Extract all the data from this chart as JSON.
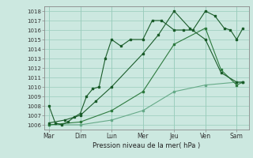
{
  "title": "",
  "xlabel": "Pression niveau de la mer( hPa )",
  "bg_color": "#cce8e0",
  "grid_color": "#99ccbb",
  "line_color_1": "#1a5c2a",
  "line_color_2": "#1a5c2a",
  "line_color_3": "#2d7a3e",
  "line_color_4": "#66aa88",
  "x_labels": [
    "Mar",
    "Dim",
    "Lun",
    "Mer",
    "Jeu",
    "Ven",
    "Sam"
  ],
  "x_positions": [
    0,
    1,
    2,
    3,
    4,
    5,
    6
  ],
  "ylim": [
    1005.5,
    1018.5
  ],
  "yticks": [
    1006,
    1007,
    1008,
    1009,
    1010,
    1011,
    1012,
    1013,
    1014,
    1015,
    1016,
    1017,
    1018
  ],
  "series1_x": [
    0,
    0.2,
    0.4,
    0.6,
    0.8,
    1.0,
    1.2,
    1.4,
    1.6,
    1.8,
    2.0,
    2.3,
    2.6,
    3.0,
    3.3,
    3.6,
    4.0,
    4.3,
    4.6,
    5.0,
    5.3,
    5.6,
    5.8,
    6.0,
    6.2
  ],
  "series1_y": [
    1008.0,
    1006.2,
    1006.0,
    1006.3,
    1006.8,
    1007.2,
    1009.0,
    1009.8,
    1010.0,
    1013.0,
    1015.0,
    1014.3,
    1015.0,
    1015.0,
    1017.0,
    1017.0,
    1016.0,
    1016.0,
    1016.0,
    1018.0,
    1017.5,
    1016.2,
    1016.0,
    1015.0,
    1016.2
  ],
  "series2_x": [
    0,
    0.5,
    1.0,
    1.5,
    2.0,
    3.0,
    3.5,
    4.0,
    4.5,
    5.0,
    5.5,
    6.0,
    6.2
  ],
  "series2_y": [
    1006.2,
    1006.5,
    1007.0,
    1008.5,
    1010.0,
    1013.5,
    1015.5,
    1018.0,
    1016.2,
    1015.0,
    1011.5,
    1010.5,
    1010.5
  ],
  "series3_x": [
    0,
    1.0,
    2.0,
    3.0,
    4.0,
    5.0,
    5.5,
    6.0,
    6.2
  ],
  "series3_y": [
    1006.0,
    1006.3,
    1007.5,
    1009.5,
    1014.5,
    1016.2,
    1011.8,
    1010.2,
    1010.5
  ],
  "series4_x": [
    0,
    1.0,
    2.0,
    3.0,
    4.0,
    5.0,
    6.0,
    6.2
  ],
  "series4_y": [
    1006.0,
    1006.0,
    1006.5,
    1007.5,
    1009.5,
    1010.2,
    1010.5,
    1010.5
  ]
}
